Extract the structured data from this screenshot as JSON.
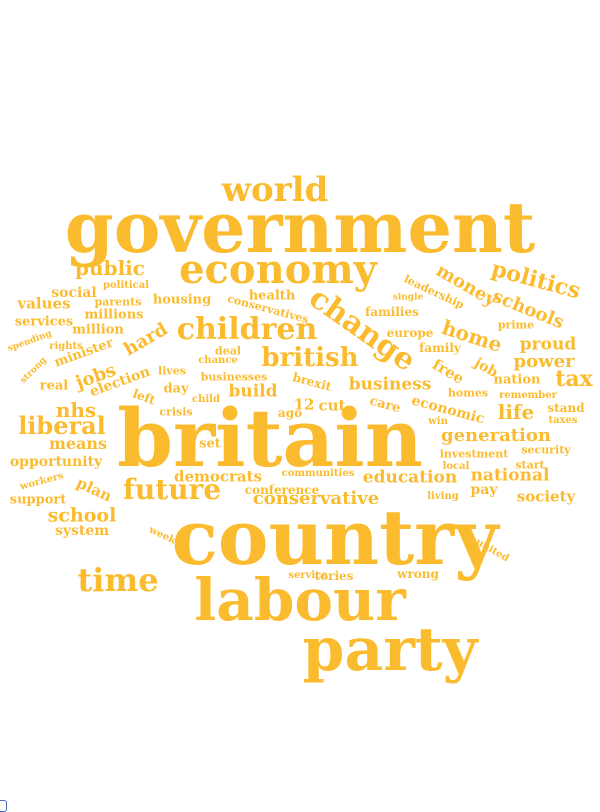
{
  "color": "#fbbb2e",
  "words": [
    "government",
    "country",
    "britain",
    "labour",
    "party",
    "economy",
    "world",
    "children",
    "change",
    "time",
    "future",
    "british",
    "politics",
    "schools",
    "money",
    "liberal",
    "public",
    "life",
    "tax",
    "home",
    "proud",
    "power",
    "generation",
    "school",
    "business",
    "national",
    "education",
    "conservative",
    "nhs",
    "jobs",
    "hard",
    "values",
    "social",
    "services",
    "means",
    "opportunity",
    "support",
    "plan",
    "system",
    "society",
    "pay",
    "free",
    "job",
    "democrats",
    "build",
    "cut",
    "care",
    "economic",
    "investment",
    "security",
    "nation",
    "remember",
    "stand",
    "taxes",
    "win",
    "local",
    "start",
    "living",
    "united",
    "tories",
    "wrong",
    "service",
    "week",
    "minister",
    "election",
    "real",
    "strong",
    "rights",
    "spending",
    "million",
    "millions",
    "parents",
    "political",
    "housing",
    "health",
    "conservatives",
    "leadership",
    "single",
    "prime",
    "families",
    "family",
    "europe",
    "deal",
    "chance",
    "lives",
    "day",
    "businesses",
    "brexit",
    "left",
    "child",
    "crisis",
    "ago",
    "12",
    "set",
    "conference",
    "communities",
    "workers",
    "homes"
  ]
}
